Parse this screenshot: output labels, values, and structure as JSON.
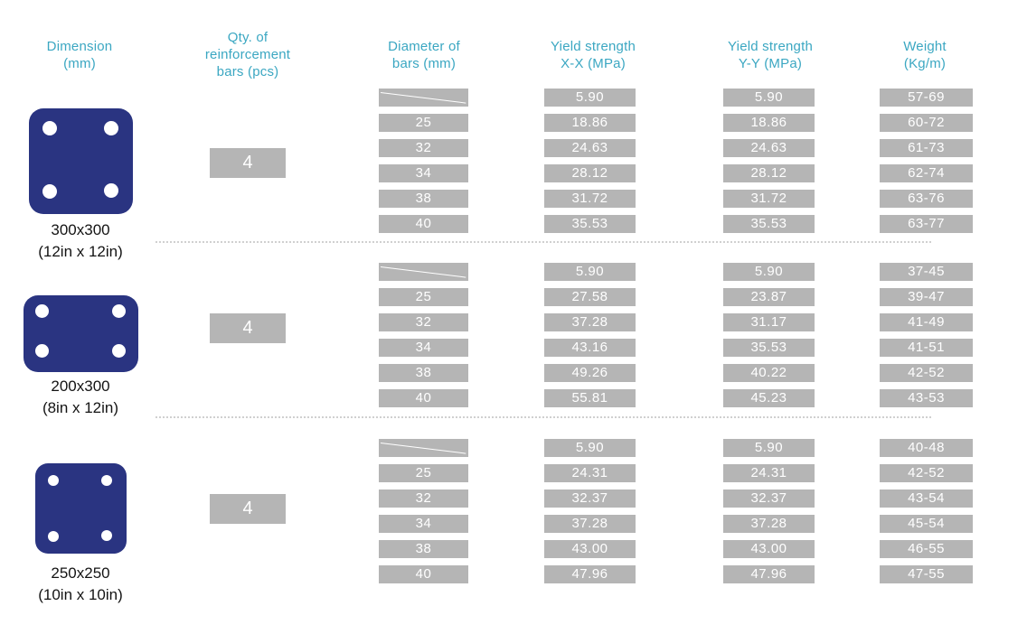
{
  "table": {
    "headers": {
      "dimension": {
        "line1": "Dimension",
        "line2": "(mm)"
      },
      "qty": {
        "line1": "Qty. of",
        "line2": "reinforcement",
        "line3": "bars (pcs)"
      },
      "diameter": {
        "line1": "Diameter of",
        "line2": "bars (mm)"
      },
      "yield_xx": {
        "line1": "Yield strength",
        "line2": "X-X (MPa)"
      },
      "yield_yy": {
        "line1": "Yield strength",
        "line2": "Y-Y (MPa)"
      },
      "weight": {
        "line1": "Weight",
        "line2": "(Kg/m)"
      }
    },
    "groups": [
      {
        "dimension_mm": "300x300",
        "dimension_in": "(12in x 12in)",
        "qty": "4",
        "rows": [
          {
            "diameter": "",
            "xx": "5.90",
            "yy": "5.90",
            "weight": "57-69"
          },
          {
            "diameter": "25",
            "xx": "18.86",
            "yy": "18.86",
            "weight": "60-72"
          },
          {
            "diameter": "32",
            "xx": "24.63",
            "yy": "24.63",
            "weight": "61-73"
          },
          {
            "diameter": "34",
            "xx": "28.12",
            "yy": "28.12",
            "weight": "62-74"
          },
          {
            "diameter": "38",
            "xx": "31.72",
            "yy": "31.72",
            "weight": "63-76"
          },
          {
            "diameter": "40",
            "xx": "35.53",
            "yy": "35.53",
            "weight": "63-77"
          }
        ]
      },
      {
        "dimension_mm": "200x300",
        "dimension_in": "(8in x 12in)",
        "qty": "4",
        "rows": [
          {
            "diameter": "",
            "xx": "5.90",
            "yy": "5.90",
            "weight": "37-45"
          },
          {
            "diameter": "25",
            "xx": "27.58",
            "yy": "23.87",
            "weight": "39-47"
          },
          {
            "diameter": "32",
            "xx": "37.28",
            "yy": "31.17",
            "weight": "41-49"
          },
          {
            "diameter": "34",
            "xx": "43.16",
            "yy": "35.53",
            "weight": "41-51"
          },
          {
            "diameter": "38",
            "xx": "49.26",
            "yy": "40.22",
            "weight": "42-52"
          },
          {
            "diameter": "40",
            "xx": "55.81",
            "yy": "45.23",
            "weight": "43-53"
          }
        ]
      },
      {
        "dimension_mm": "250x250",
        "dimension_in": "(10in x 10in)",
        "qty": "4",
        "rows": [
          {
            "diameter": "",
            "xx": "5.90",
            "yy": "5.90",
            "weight": "40-48"
          },
          {
            "diameter": "25",
            "xx": "24.31",
            "yy": "24.31",
            "weight": "42-52"
          },
          {
            "diameter": "32",
            "xx": "32.37",
            "yy": "32.37",
            "weight": "43-54"
          },
          {
            "diameter": "34",
            "xx": "37.28",
            "yy": "37.28",
            "weight": "45-54"
          },
          {
            "diameter": "38",
            "xx": "43.00",
            "yy": "43.00",
            "weight": "46-55"
          },
          {
            "diameter": "40",
            "xx": "47.96",
            "yy": "47.96",
            "weight": "47-55"
          }
        ]
      }
    ]
  },
  "colors": {
    "header_text": "#3ba7c2",
    "cell_background": "#b5b5b5",
    "cell_text": "#ffffff",
    "plate_fill": "#2a3481",
    "label_text": "#141414",
    "separator": "#d0d0d0"
  }
}
